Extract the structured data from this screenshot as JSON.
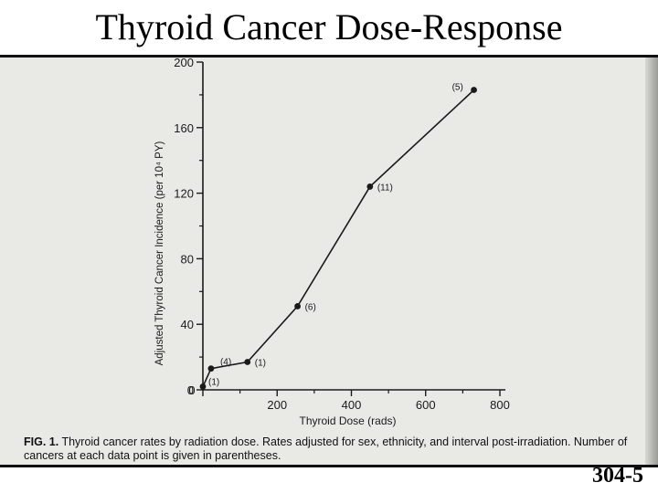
{
  "slide": {
    "title": "Thyroid Cancer Dose-Response",
    "number": "304-5"
  },
  "caption": {
    "label": "FIG. 1.",
    "text": "Thyroid cancer rates by radiation dose. Rates adjusted for sex, ethnicity, and interval post-irradiation. Number of cancers at each data point is given in parentheses."
  },
  "chart_data": {
    "type": "line",
    "title": "",
    "xlabel": "Thyroid Dose (rads)",
    "ylabel": "Adjusted Thyroid Cancer Incidence (per 10⁴ PY)",
    "xlim": [
      0,
      800
    ],
    "ylim": [
      0,
      200
    ],
    "x_ticks": [
      "0",
      "200",
      "400",
      "600",
      "800"
    ],
    "y_ticks": [
      "0",
      "40",
      "80",
      "120",
      "160",
      "200"
    ],
    "grid": false,
    "series": [
      {
        "points": [
          {
            "x": 0,
            "y": 2,
            "label": "(1)"
          },
          {
            "x": 22,
            "y": 13,
            "label": "(4)"
          },
          {
            "x": 120,
            "y": 17,
            "label": "(1)"
          },
          {
            "x": 255,
            "y": 51,
            "label": "(6)"
          },
          {
            "x": 450,
            "y": 124,
            "label": "(11)"
          },
          {
            "x": 730,
            "y": 183,
            "label": "(5)"
          }
        ]
      }
    ]
  }
}
